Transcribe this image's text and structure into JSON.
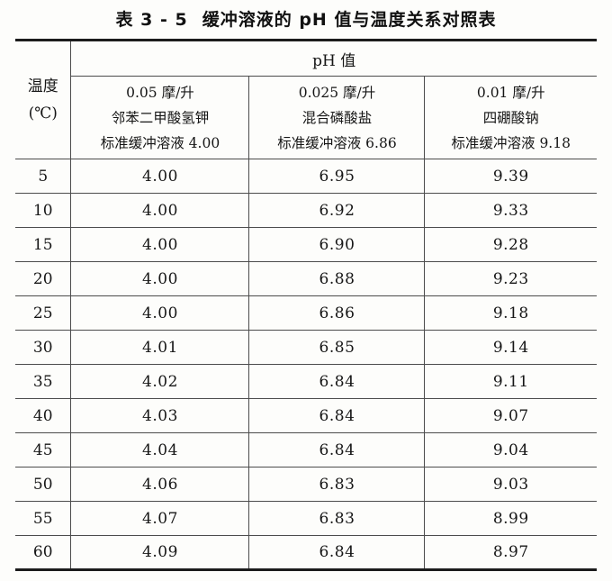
{
  "title": {
    "label": "表 3 - 5",
    "text": "缓冲溶液的 pH 值与温度关系对照表"
  },
  "colors": {
    "paper": "#fdfdfb",
    "ink": "#151515",
    "thick_rule": "#1c1c1c",
    "thin_rule": "#4c4c4c"
  },
  "table": {
    "temp_header": {
      "line1": "温度",
      "line2": "(℃)"
    },
    "ph_group_header": "pH 值",
    "columns": [
      {
        "line1": "0.05 摩/升",
        "line2": "邻苯二甲酸氢钾",
        "line3": "标准缓冲溶液 4.00"
      },
      {
        "line1": "0.025 摩/升",
        "line2": "混合磷酸盐",
        "line3": "标准缓冲溶液 6.86"
      },
      {
        "line1": "0.01 摩/升",
        "line2": "四硼酸钠",
        "line3": "标准缓冲溶液 9.18"
      }
    ],
    "rows": [
      {
        "temp": "5",
        "values": [
          "4.00",
          "6.95",
          "9.39"
        ]
      },
      {
        "temp": "10",
        "values": [
          "4.00",
          "6.92",
          "9.33"
        ]
      },
      {
        "temp": "15",
        "values": [
          "4.00",
          "6.90",
          "9.28"
        ]
      },
      {
        "temp": "20",
        "values": [
          "4.00",
          "6.88",
          "9.23"
        ]
      },
      {
        "temp": "25",
        "values": [
          "4.00",
          "6.86",
          "9.18"
        ]
      },
      {
        "temp": "30",
        "values": [
          "4.01",
          "6.85",
          "9.14"
        ]
      },
      {
        "temp": "35",
        "values": [
          "4.02",
          "6.84",
          "9.11"
        ]
      },
      {
        "temp": "40",
        "values": [
          "4.03",
          "6.84",
          "9.07"
        ]
      },
      {
        "temp": "45",
        "values": [
          "4.04",
          "6.84",
          "9.04"
        ]
      },
      {
        "temp": "50",
        "values": [
          "4.06",
          "6.83",
          "9.03"
        ]
      },
      {
        "temp": "55",
        "values": [
          "4.07",
          "6.83",
          "8.99"
        ]
      },
      {
        "temp": "60",
        "values": [
          "4.09",
          "6.84",
          "8.97"
        ]
      }
    ]
  }
}
